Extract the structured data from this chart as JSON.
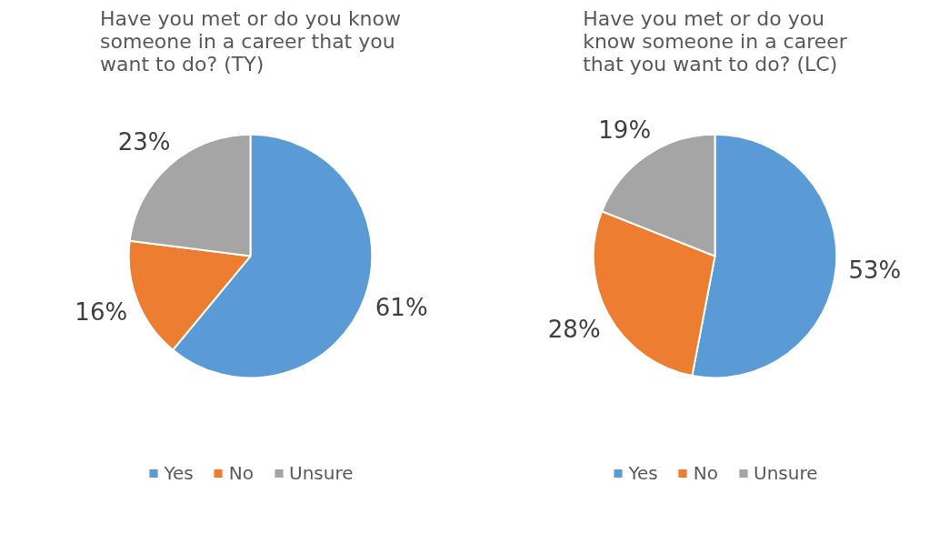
{
  "chart_data": [
    {
      "type": "pie",
      "title": "Have you met or do you know someone in a career that you want to do? (TY)",
      "categories": [
        "Yes",
        "No",
        "Unsure"
      ],
      "values": [
        61,
        16,
        23
      ],
      "colors": [
        "#5b9bd5",
        "#ed7d31",
        "#a5a5a5"
      ],
      "value_labels": [
        "61%",
        "16%",
        "23%"
      ],
      "legend": "bottom"
    },
    {
      "type": "pie",
      "title": "Have you met or do you know someone in a career that you want to do? (LC)",
      "categories": [
        "Yes",
        "No",
        "Unsure"
      ],
      "values": [
        53,
        28,
        19
      ],
      "colors": [
        "#5b9bd5",
        "#ed7d31",
        "#a5a5a5"
      ],
      "value_labels": [
        "53%",
        "28%",
        "19%"
      ],
      "legend": "bottom"
    }
  ]
}
